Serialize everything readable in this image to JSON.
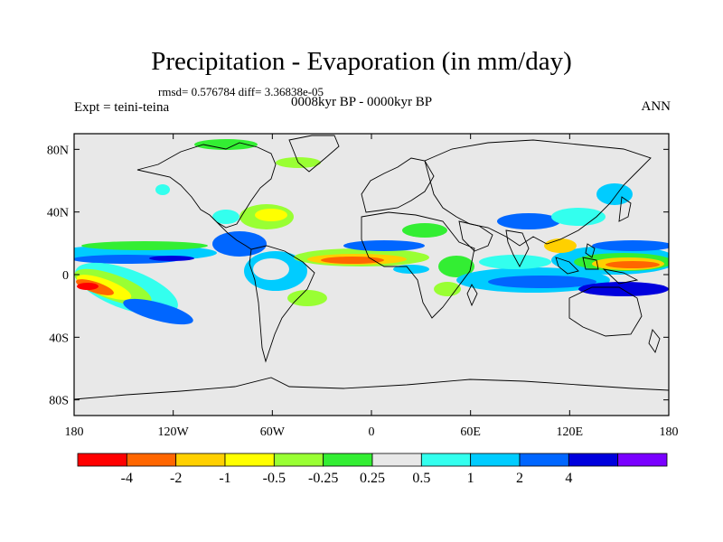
{
  "title": "Precipitation - Evaporation (in mm/day)",
  "stats": "rmsd= 0.576784 diff= 3.36838e-05",
  "expt": "Expt = teini-teina",
  "subtitle": "0008kyr BP - 0000kyr BP",
  "season": "ANN",
  "lat_ticks": [
    {
      "lat": 80,
      "label": "80N"
    },
    {
      "lat": 40,
      "label": "40N"
    },
    {
      "lat": 0,
      "label": "0"
    },
    {
      "lat": -40,
      "label": "40S"
    },
    {
      "lat": -80,
      "label": "80S"
    }
  ],
  "lon_ticks": [
    {
      "lon": -180,
      "label": "180"
    },
    {
      "lon": -120,
      "label": "120W"
    },
    {
      "lon": -60,
      "label": "60W"
    },
    {
      "lon": 0,
      "label": "0"
    },
    {
      "lon": 60,
      "label": "60E"
    },
    {
      "lon": 120,
      "label": "120E"
    },
    {
      "lon": 180,
      "label": "180"
    }
  ],
  "colorbar": {
    "colors": [
      "#ff0000",
      "#ff6600",
      "#ffd000",
      "#ffff00",
      "#99ff33",
      "#33ee33",
      "#e8e8e8",
      "#33ffee",
      "#00ccff",
      "#0066ff",
      "#0000dd",
      "#7a00ff"
    ],
    "labels": [
      "-4",
      "-2",
      "-1",
      "-0.5",
      "-0.25",
      "0.25",
      "0.5",
      "1",
      "2",
      "4"
    ]
  },
  "background_color": "#e8e8e8"
}
